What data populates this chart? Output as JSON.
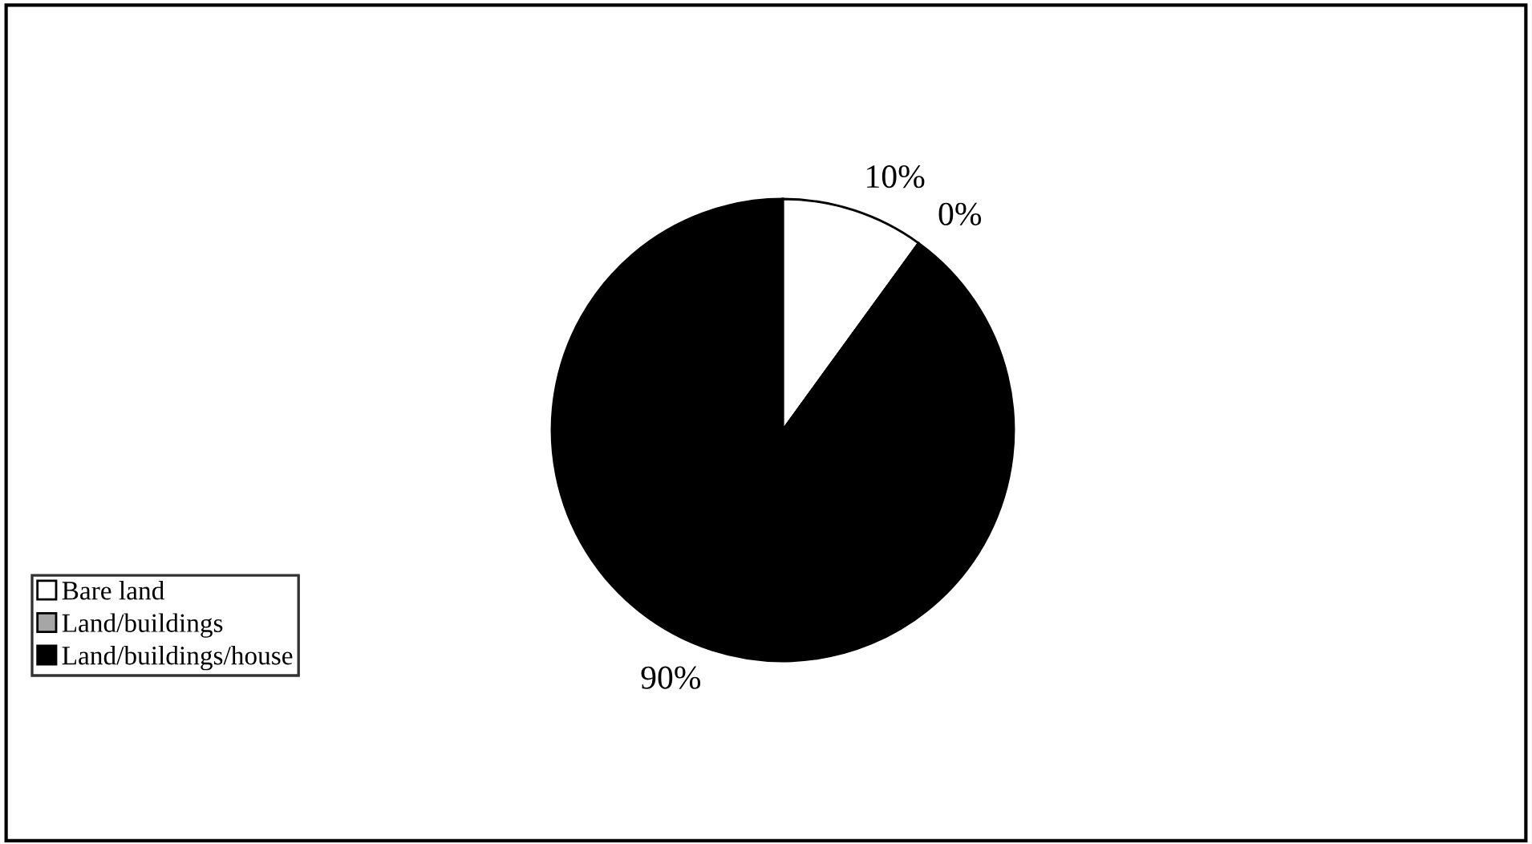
{
  "chart_data": {
    "type": "pie",
    "categories": [
      "Bare land",
      "Land/buildings",
      "Land/buildings/house"
    ],
    "values": [
      10,
      0,
      90
    ],
    "colors": [
      "#ffffff",
      "#a6a6a6",
      "#000000"
    ],
    "value_labels": [
      "10%",
      "0%",
      "90%"
    ],
    "legend": "bottom left"
  }
}
